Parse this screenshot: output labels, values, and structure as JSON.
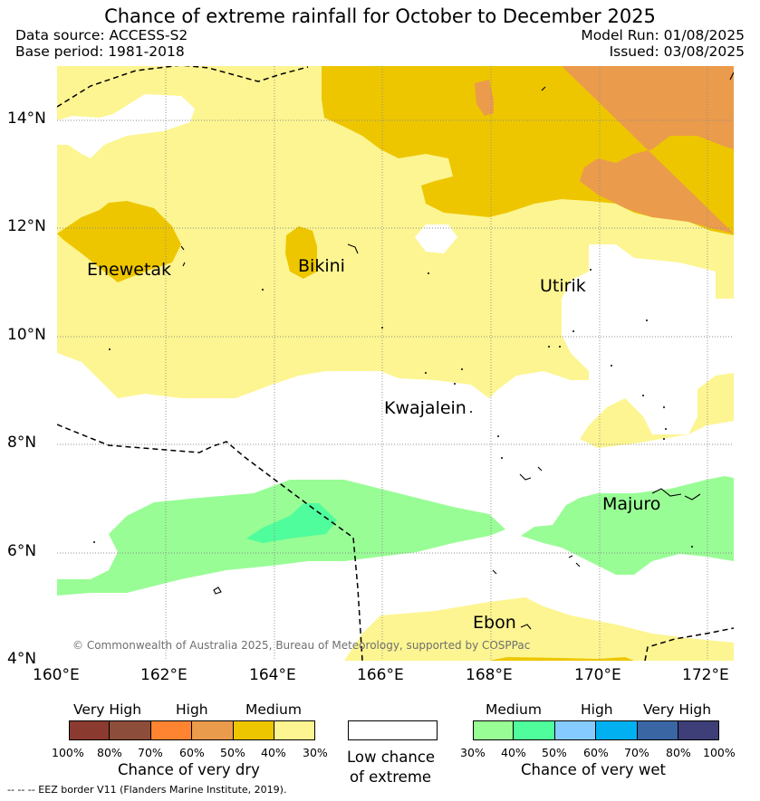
{
  "title": "Chance of extreme rainfall for October to December 2025",
  "data_source": "Data source: ACCESS-S2",
  "base_period": "Base period: 1981-2018",
  "model_run": "Model Run: 01/08/2025",
  "issued": "Issued: 03/08/2025",
  "lon_ticks": [
    "160°E",
    "162°E",
    "164°E",
    "166°E",
    "168°E",
    "170°E",
    "172°E"
  ],
  "lat_ticks": [
    "14°N",
    "12°N",
    "10°N",
    "8°N",
    "6°N",
    "4°N"
  ],
  "places": [
    "Enewetak",
    "Bikini",
    "Utirik",
    "Kwajalein",
    "Majuro",
    "Ebon"
  ],
  "copyright": "© Commonwealth of Australia 2025, Bureau of Meteorology, supported by COSPPac",
  "legend_dry": {
    "title": "Chance of very dry",
    "categories": [
      "Very High",
      "High",
      "Medium"
    ],
    "percent_labels": [
      "100%",
      "80%",
      "70%",
      "60%",
      "50%",
      "40%",
      "30%"
    ],
    "colors": [
      "#8b3a30",
      "#8c4d3a",
      "#ff8431",
      "#eb9b4c",
      "#edc600",
      "#fdf591"
    ]
  },
  "legend_low": {
    "line1": "Low chance",
    "line2": "of extreme",
    "color": "#ffffff"
  },
  "legend_wet": {
    "title": "Chance of very wet",
    "categories": [
      "Medium",
      "High",
      "Very High"
    ],
    "percent_labels": [
      "30%",
      "40%",
      "50%",
      "60%",
      "70%",
      "80%",
      "100%"
    ],
    "colors": [
      "#99fd95",
      "#4ffd9c",
      "#86cbff",
      "#00b0f0",
      "#3a66a3",
      "#3e3e78"
    ]
  },
  "eez_note": "--  --  -- EEZ border V11 (Flanders Marine Institute, 2019)."
}
